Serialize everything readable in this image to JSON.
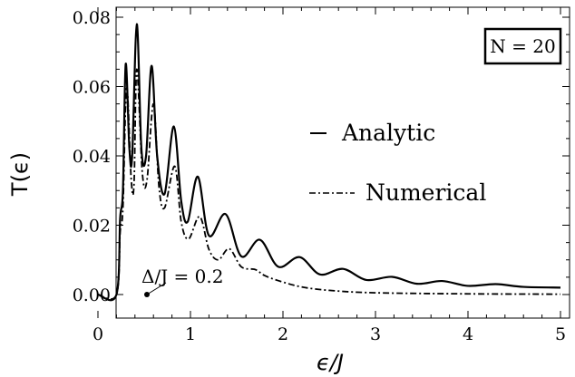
{
  "chart_data": {
    "type": "line",
    "xlabel": "ϵ/J",
    "ylabel": "T(ϵ)",
    "xlim": [
      0,
      5
    ],
    "ylim": [
      0,
      0.08
    ],
    "x_ticks": [
      "0",
      "1",
      "2",
      "3",
      "4",
      "5"
    ],
    "y_ticks": [
      "0.00",
      "0.02",
      "0.04",
      "0.06",
      "0.08"
    ],
    "grid": false,
    "box_label": "N = 20",
    "gap_annotation": {
      "text": "Δ/J = 0.2",
      "x": 0.2,
      "y": 0.0
    },
    "series": [
      {
        "name": "Analytic",
        "style": "solid",
        "points": [
          [
            0.0,
            0.0
          ],
          [
            0.2,
            0.0
          ],
          [
            0.24,
            0.022
          ],
          [
            0.27,
            0.03
          ],
          [
            0.3,
            0.0665
          ],
          [
            0.34,
            0.042
          ],
          [
            0.37,
            0.04
          ],
          [
            0.42,
            0.078
          ],
          [
            0.47,
            0.042
          ],
          [
            0.52,
            0.04
          ],
          [
            0.58,
            0.066
          ],
          [
            0.64,
            0.04
          ],
          [
            0.72,
            0.029
          ],
          [
            0.82,
            0.0485
          ],
          [
            0.9,
            0.027
          ],
          [
            0.97,
            0.021
          ],
          [
            1.08,
            0.034
          ],
          [
            1.2,
            0.017
          ],
          [
            1.38,
            0.0232
          ],
          [
            1.55,
            0.011
          ],
          [
            1.75,
            0.0158
          ],
          [
            1.95,
            0.008
          ],
          [
            2.18,
            0.0108
          ],
          [
            2.4,
            0.0058
          ],
          [
            2.65,
            0.0074
          ],
          [
            2.9,
            0.0042
          ],
          [
            3.18,
            0.0051
          ],
          [
            3.45,
            0.0031
          ],
          [
            3.72,
            0.0039
          ],
          [
            4.0,
            0.0025
          ],
          [
            4.3,
            0.003
          ],
          [
            4.6,
            0.0022
          ],
          [
            5.0,
            0.002
          ]
        ]
      },
      {
        "name": "Numerical",
        "style": "dash-dot",
        "points": [
          [
            0.0,
            0.0
          ],
          [
            0.2,
            0.0
          ],
          [
            0.24,
            0.018
          ],
          [
            0.27,
            0.025
          ],
          [
            0.31,
            0.06
          ],
          [
            0.36,
            0.033
          ],
          [
            0.39,
            0.032
          ],
          [
            0.42,
            0.065
          ],
          [
            0.48,
            0.035
          ],
          [
            0.53,
            0.033
          ],
          [
            0.6,
            0.055
          ],
          [
            0.66,
            0.031
          ],
          [
            0.72,
            0.025
          ],
          [
            0.83,
            0.037
          ],
          [
            0.9,
            0.021
          ],
          [
            0.98,
            0.016
          ],
          [
            1.1,
            0.0225
          ],
          [
            1.2,
            0.013
          ],
          [
            1.3,
            0.01
          ],
          [
            1.42,
            0.0132
          ],
          [
            1.55,
            0.008
          ],
          [
            1.7,
            0.0072
          ],
          [
            1.8,
            0.0055
          ],
          [
            1.95,
            0.004
          ],
          [
            2.2,
            0.0022
          ],
          [
            2.5,
            0.0012
          ],
          [
            3.0,
            0.0005
          ],
          [
            4.0,
            0.0002
          ],
          [
            5.0,
            0.0001
          ]
        ]
      }
    ],
    "colors": {
      "line": "#000000",
      "background": "#ffffff"
    }
  }
}
